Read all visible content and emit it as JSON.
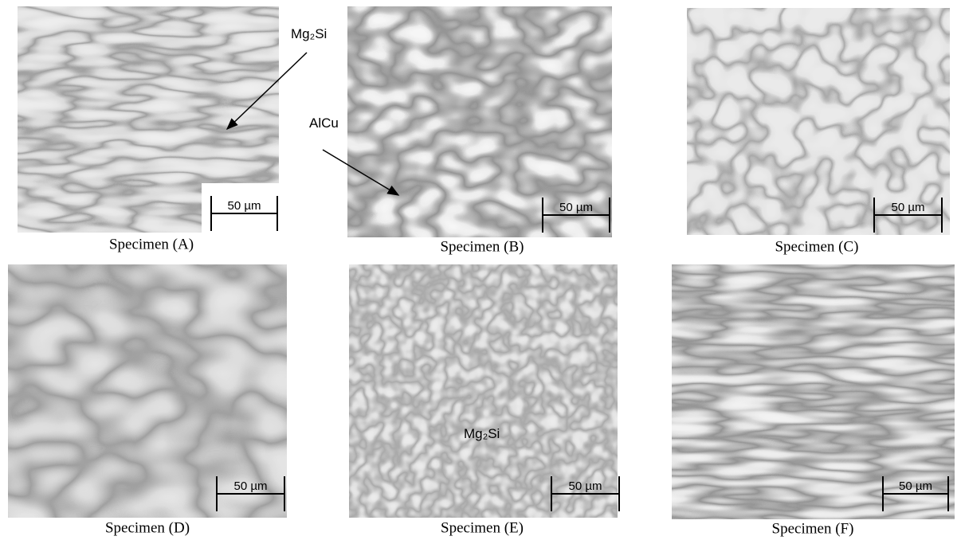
{
  "panels": [
    {
      "caption": "Specimen (A)",
      "scale_bar": "50 µm",
      "annotation": "Mg₂Si"
    },
    {
      "caption": "Specimen (B)",
      "scale_bar": "50 µm",
      "annotation": "AlCu"
    },
    {
      "caption": "Specimen (C)",
      "scale_bar": "50 µm"
    },
    {
      "caption": "Specimen (D)",
      "scale_bar": "50 µm"
    },
    {
      "caption": "Specimen (E)",
      "scale_bar": "50 µm",
      "annotation": "Mg₂Si"
    },
    {
      "caption": "Specimen (F)",
      "scale_bar": "50 µm"
    }
  ]
}
